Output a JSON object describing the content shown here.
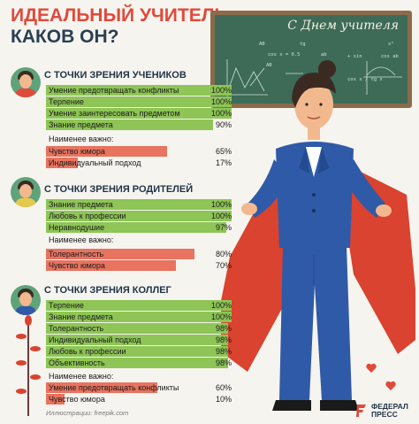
{
  "title": {
    "line1": "ИДЕАЛЬНЫЙ УЧИТЕЛЬ:",
    "line2": "КАКОВ ОН?"
  },
  "board": {
    "greeting": "С Днем учителя",
    "formulas": [
      "AB",
      "cos x = 0.5",
      "AB",
      "tg",
      "ab",
      "+ sin",
      "x²",
      "cos ab",
      "cos x / tg x"
    ]
  },
  "chart_data": [
    {
      "type": "bar",
      "title": "С ТОЧКИ ЗРЕНИЯ УЧЕНИКОВ",
      "categories": [
        "Умение предотвращать конфликты",
        "Терпение",
        "Умение заинтересовать предметом",
        "Знание предмета"
      ],
      "values": [
        100,
        100,
        100,
        90
      ],
      "secondary_label": "Наименее важно:",
      "secondary_categories": [
        "Чувство юмора",
        "Индивидуальный подход"
      ],
      "secondary_values": [
        65,
        17
      ],
      "unit": "%",
      "xlim": [
        0,
        100
      ]
    },
    {
      "type": "bar",
      "title": "С ТОЧКИ ЗРЕНИЯ РОДИТЕЛЕЙ",
      "categories": [
        "Знание предмета",
        "Любовь к профессии",
        "Неравнодушие"
      ],
      "values": [
        100,
        100,
        97
      ],
      "secondary_label": "Наименее важно:",
      "secondary_categories": [
        "Толерантность",
        "Чувство юмора"
      ],
      "secondary_values": [
        80,
        70
      ],
      "unit": "%",
      "xlim": [
        0,
        100
      ]
    },
    {
      "type": "bar",
      "title": "С ТОЧКИ ЗРЕНИЯ КОЛЛЕГ",
      "categories": [
        "Терпение",
        "Знание предмета",
        "Толерантность",
        "Индивидуальный подход",
        "Любовь к профессии",
        "Объективность"
      ],
      "values": [
        100,
        100,
        98,
        98,
        98,
        98
      ],
      "secondary_label": "Наименее важно:",
      "secondary_categories": [
        "Умение предотвращать конфликты",
        "Чувство юмора"
      ],
      "secondary_values": [
        60,
        10
      ],
      "unit": "%",
      "xlim": [
        0,
        100
      ]
    }
  ],
  "credit": "Иллюстрации: freepik.com",
  "brand": {
    "line1": "ФЕДЕРАЛ",
    "line2": "ПРЕСС"
  },
  "colors": {
    "positive": "#8ec556",
    "negative": "#e8735f",
    "title_red": "#e04a3c",
    "title_blue": "#2a3f52",
    "suit": "#2f5aa8",
    "cape": "#d9432f",
    "board": "#3d6b57"
  }
}
